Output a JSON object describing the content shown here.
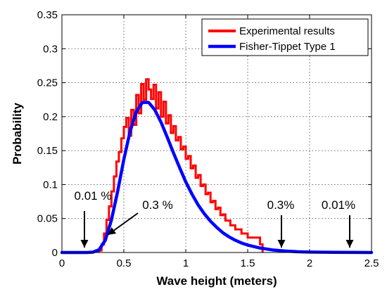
{
  "chart_data": {
    "type": "line",
    "title": "",
    "xlabel": "Wave height (meters)",
    "ylabel": "Probability",
    "xlim": [
      0,
      2.5
    ],
    "ylim": [
      0,
      0.35
    ],
    "x_ticks": [
      0,
      0.5,
      1,
      1.5,
      2,
      2.5
    ],
    "x_tick_labels": [
      "0",
      "0.5",
      "1",
      "1.5",
      "2",
      "2.5"
    ],
    "y_ticks": [
      0,
      0.05,
      0.1,
      0.15,
      0.2,
      0.25,
      0.3,
      0.35
    ],
    "y_tick_labels": [
      "0",
      "0.05",
      "0.1",
      "0.15",
      "0.2",
      "0.25",
      "0.3",
      "0.35"
    ],
    "grid": true,
    "legend_position": "top-right",
    "series": [
      {
        "name": "Experimental results",
        "style": "stairs",
        "color": "#ff0000",
        "x": [
          0.3,
          0.32,
          0.34,
          0.36,
          0.38,
          0.4,
          0.42,
          0.44,
          0.46,
          0.48,
          0.5,
          0.52,
          0.54,
          0.56,
          0.58,
          0.6,
          0.62,
          0.64,
          0.66,
          0.68,
          0.7,
          0.72,
          0.74,
          0.76,
          0.78,
          0.8,
          0.82,
          0.84,
          0.86,
          0.88,
          0.9,
          0.92,
          0.94,
          0.96,
          0.98,
          1.0,
          1.02,
          1.04,
          1.06,
          1.08,
          1.1,
          1.12,
          1.14,
          1.16,
          1.18,
          1.2,
          1.22,
          1.24,
          1.26,
          1.28,
          1.3,
          1.32,
          1.34,
          1.36,
          1.38,
          1.4,
          1.45,
          1.5,
          1.6
        ],
        "y": [
          0.003,
          0.012,
          0.028,
          0.048,
          0.068,
          0.09,
          0.112,
          0.134,
          0.148,
          0.168,
          0.185,
          0.198,
          0.172,
          0.21,
          0.188,
          0.232,
          0.205,
          0.248,
          0.225,
          0.255,
          0.24,
          0.226,
          0.247,
          0.212,
          0.236,
          0.2,
          0.222,
          0.19,
          0.202,
          0.176,
          0.186,
          0.165,
          0.17,
          0.152,
          0.156,
          0.138,
          0.142,
          0.124,
          0.128,
          0.11,
          0.114,
          0.098,
          0.1,
          0.086,
          0.088,
          0.074,
          0.076,
          0.064,
          0.066,
          0.055,
          0.056,
          0.047,
          0.047,
          0.04,
          0.04,
          0.034,
          0.028,
          0.022,
          0.012
        ]
      },
      {
        "name": "Fisher-Tippet Type 1",
        "style": "line",
        "color": "#0000ff",
        "x": [
          0,
          0.1,
          0.2,
          0.25,
          0.3,
          0.35,
          0.4,
          0.45,
          0.5,
          0.55,
          0.6,
          0.65,
          0.7,
          0.75,
          0.8,
          0.85,
          0.9,
          0.95,
          1.0,
          1.05,
          1.1,
          1.15,
          1.2,
          1.25,
          1.3,
          1.35,
          1.4,
          1.45,
          1.5,
          1.6,
          1.7,
          1.8,
          1.9,
          2.0,
          2.2,
          2.5
        ],
        "y": [
          0,
          0,
          0,
          0.0005,
          0.004,
          0.018,
          0.048,
          0.09,
          0.137,
          0.178,
          0.207,
          0.221,
          0.221,
          0.21,
          0.192,
          0.17,
          0.147,
          0.125,
          0.104,
          0.086,
          0.07,
          0.057,
          0.046,
          0.037,
          0.029,
          0.023,
          0.018,
          0.014,
          0.011,
          0.0066,
          0.0038,
          0.0022,
          0.0012,
          0.0007,
          0.0002,
          0
        ]
      }
    ],
    "annotations": [
      {
        "text": "0.01 %",
        "x": 0.2
      },
      {
        "text": "0.3 %",
        "x": 0.38
      },
      {
        "text": "0.3%",
        "x": 1.78
      },
      {
        "text": "0.01%",
        "x": 2.34
      }
    ]
  }
}
